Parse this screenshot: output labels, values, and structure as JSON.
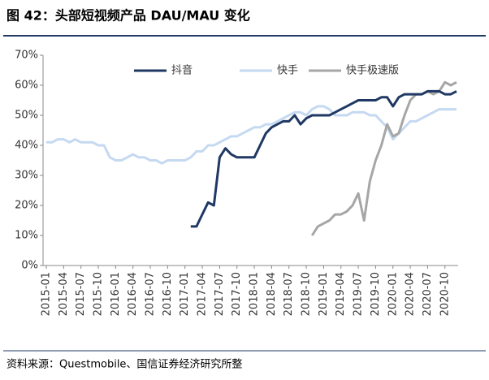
{
  "chart_data": {
    "type": "line",
    "title": "图 42：头部短视频产品 DAU/MAU 变化",
    "source": "资料来源：Questmobile、国信证券经济研究所整",
    "categories": [
      "2015-01",
      null,
      null,
      "2015-04",
      null,
      null,
      "2015-07",
      null,
      null,
      "2015-10",
      null,
      null,
      "2016-01",
      null,
      null,
      "2016-04",
      null,
      null,
      "2016-07",
      null,
      null,
      "2016-10",
      null,
      null,
      "2017-01",
      null,
      null,
      "2017-04",
      null,
      null,
      "2017-07",
      null,
      null,
      "2017-10",
      null,
      null,
      "2018-01",
      null,
      null,
      "2018-04",
      null,
      null,
      "2018-07",
      null,
      null,
      "2018-10",
      null,
      null,
      "2019-01",
      null,
      null,
      "2019-04",
      null,
      null,
      "2019-07",
      null,
      null,
      "2019-10",
      null,
      null,
      "2020-01",
      null,
      null,
      "2020-04",
      null,
      null,
      "2020-07",
      null,
      null,
      "2020-10",
      null,
      null
    ],
    "series": [
      {
        "name": "抖音",
        "color": "#1f3864",
        "values": [
          null,
          null,
          null,
          null,
          null,
          null,
          null,
          null,
          null,
          null,
          null,
          null,
          null,
          null,
          null,
          null,
          null,
          null,
          null,
          null,
          null,
          null,
          null,
          null,
          null,
          13,
          13,
          17,
          21,
          20,
          36,
          39,
          37,
          36,
          36,
          36,
          36,
          40,
          44,
          46,
          47,
          48,
          48,
          50,
          47,
          49,
          50,
          50,
          50,
          50,
          51,
          52,
          53,
          54,
          55,
          55,
          55,
          55,
          56,
          56,
          53,
          56,
          57,
          57,
          57,
          57,
          58,
          58,
          58,
          57,
          57,
          58
        ]
      },
      {
        "name": "快手",
        "color": "#c5d9f1",
        "values": [
          41,
          41,
          42,
          42,
          41,
          42,
          41,
          41,
          41,
          40,
          40,
          36,
          35,
          35,
          36,
          37,
          36,
          36,
          35,
          35,
          34,
          35,
          35,
          35,
          35,
          36,
          38,
          38,
          40,
          40,
          41,
          42,
          43,
          43,
          44,
          45,
          46,
          46,
          47,
          47,
          48,
          49,
          50,
          51,
          51,
          50,
          52,
          53,
          53,
          52,
          50,
          50,
          50,
          51,
          51,
          51,
          50,
          50,
          48,
          46,
          42,
          44,
          46,
          48,
          48,
          49,
          50,
          51,
          52,
          52,
          52,
          52
        ]
      },
      {
        "name": "快手极速版",
        "color": "#a6a6a6",
        "values": [
          null,
          null,
          null,
          null,
          null,
          null,
          null,
          null,
          null,
          null,
          null,
          null,
          null,
          null,
          null,
          null,
          null,
          null,
          null,
          null,
          null,
          null,
          null,
          null,
          null,
          null,
          null,
          null,
          null,
          null,
          null,
          null,
          null,
          null,
          null,
          null,
          null,
          null,
          null,
          null,
          null,
          null,
          null,
          null,
          null,
          null,
          10,
          13,
          14,
          15,
          17,
          17,
          18,
          20,
          24,
          15,
          28,
          35,
          40,
          47,
          43,
          44,
          50,
          55,
          57,
          57,
          58,
          57,
          58,
          61,
          60,
          61
        ]
      }
    ],
    "ylim": [
      0,
      70
    ],
    "yticks": [
      {
        "value": 0,
        "label": "0%"
      },
      {
        "value": 10,
        "label": "10%"
      },
      {
        "value": 20,
        "label": "20%"
      },
      {
        "value": 30,
        "label": "30%"
      },
      {
        "value": 40,
        "label": "40%"
      },
      {
        "value": 50,
        "label": "50%"
      },
      {
        "value": 60,
        "label": "60%"
      },
      {
        "value": 70,
        "label": "70%"
      }
    ],
    "grid": false,
    "legend": "top"
  }
}
